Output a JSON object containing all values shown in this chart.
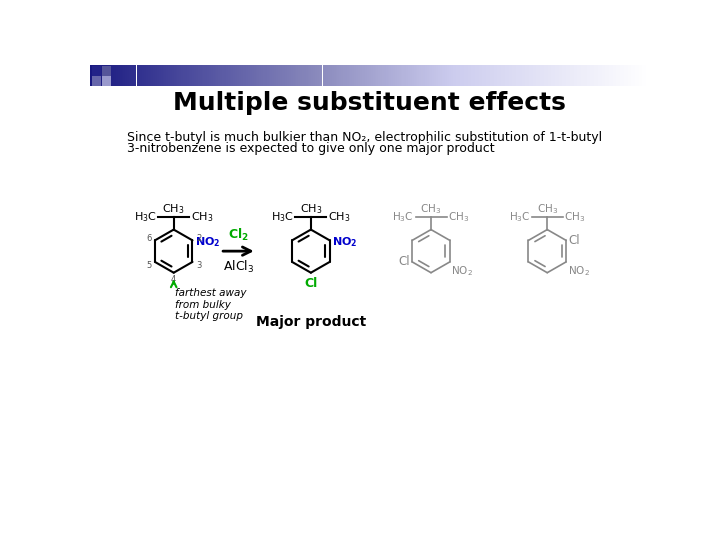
{
  "title": "Multiple substituent effects",
  "title_fontsize": 18,
  "title_fontweight": "bold",
  "bg_color": "#ffffff",
  "description_text_line1": "Since t-butyl is much bulkier than NO₂, electrophilic substitution of 1-t-butyl",
  "description_text_line2": "3-nitrobenzene is expected to give only one major product",
  "description_fontsize": 9,
  "green_color": "#00aa00",
  "blue_color": "#0000cc",
  "black_color": "#000000",
  "gray_color": "#888888",
  "annotation_text": "farthest away\nfrom bulky\nt-butyl group",
  "major_product_text": "Major product"
}
